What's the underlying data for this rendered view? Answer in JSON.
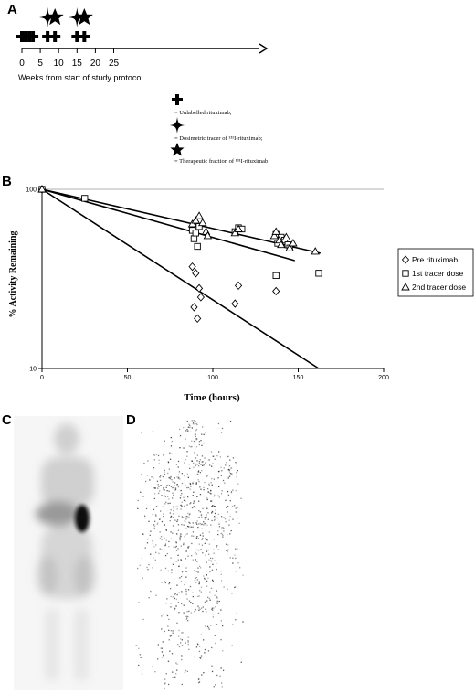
{
  "panels": {
    "a": "A",
    "b": "B",
    "c": "C",
    "d": "D"
  },
  "timeline": {
    "ticks": [
      "0",
      "5",
      "10",
      "15",
      "20",
      "25"
    ],
    "tick_values": [
      0,
      5,
      10,
      15,
      20,
      25
    ],
    "xlabel": "Weeks from start of study protocol",
    "rituximab_weeks": [
      0,
      1,
      2,
      3,
      7,
      9,
      15,
      17
    ],
    "tracer_weeks": [
      7,
      15
    ],
    "therapeutic_weeks": [
      9,
      17
    ],
    "legend": {
      "rituximab": "= Unlabelled rituximab;",
      "tracer": "= Dosimetric tracer of ¹³¹I-rituximab;",
      "therapeutic": "= Therapeutic fraction of ¹³¹I-rituximab"
    }
  },
  "chart_data": {
    "type": "scatter",
    "xlabel": "Time (hours)",
    "ylabel": "% Activity Remaining",
    "xlim": [
      0,
      200
    ],
    "ylim": [
      10,
      100
    ],
    "yscale": "log",
    "x_ticks": [
      "0",
      "50",
      "100",
      "150",
      "200"
    ],
    "y_ticks": [
      "10",
      "100"
    ],
    "legend_position": "right",
    "series": [
      {
        "name": "Pre rituximab",
        "marker": "diamond",
        "points": [
          [
            0,
            100
          ],
          [
            88,
            37
          ],
          [
            90,
            34
          ],
          [
            92,
            28
          ],
          [
            93,
            25
          ],
          [
            89,
            22
          ],
          [
            91,
            19
          ],
          [
            113,
            23
          ],
          [
            115,
            29
          ],
          [
            137,
            27
          ]
        ],
        "fit": [
          [
            0,
            100
          ],
          [
            162,
            10
          ]
        ]
      },
      {
        "name": "1st tracer dose",
        "marker": "square",
        "points": [
          [
            0,
            100
          ],
          [
            25,
            89
          ],
          [
            88,
            59
          ],
          [
            89,
            53
          ],
          [
            90,
            57
          ],
          [
            92,
            62
          ],
          [
            91,
            48
          ],
          [
            113,
            58
          ],
          [
            115,
            61
          ],
          [
            117,
            60
          ],
          [
            137,
            56
          ],
          [
            138,
            50
          ],
          [
            140,
            54
          ],
          [
            142,
            52
          ],
          [
            144,
            49
          ],
          [
            145,
            47
          ],
          [
            137,
            33
          ],
          [
            162,
            34
          ]
        ],
        "fit": [
          [
            0,
            100
          ],
          [
            148,
            40
          ]
        ]
      },
      {
        "name": "2nd tracer dose",
        "marker": "triangle",
        "points": [
          [
            0,
            100
          ],
          [
            88,
            64
          ],
          [
            90,
            67
          ],
          [
            92,
            71
          ],
          [
            94,
            65
          ],
          [
            96,
            58
          ],
          [
            97,
            55
          ],
          [
            113,
            57
          ],
          [
            115,
            60
          ],
          [
            136,
            55
          ],
          [
            137,
            58
          ],
          [
            139,
            52
          ],
          [
            140,
            49
          ],
          [
            143,
            54
          ],
          [
            145,
            47
          ],
          [
            147,
            50
          ],
          [
            160,
            45
          ]
        ],
        "fit": [
          [
            0,
            100
          ],
          [
            163,
            44
          ]
        ]
      }
    ]
  }
}
